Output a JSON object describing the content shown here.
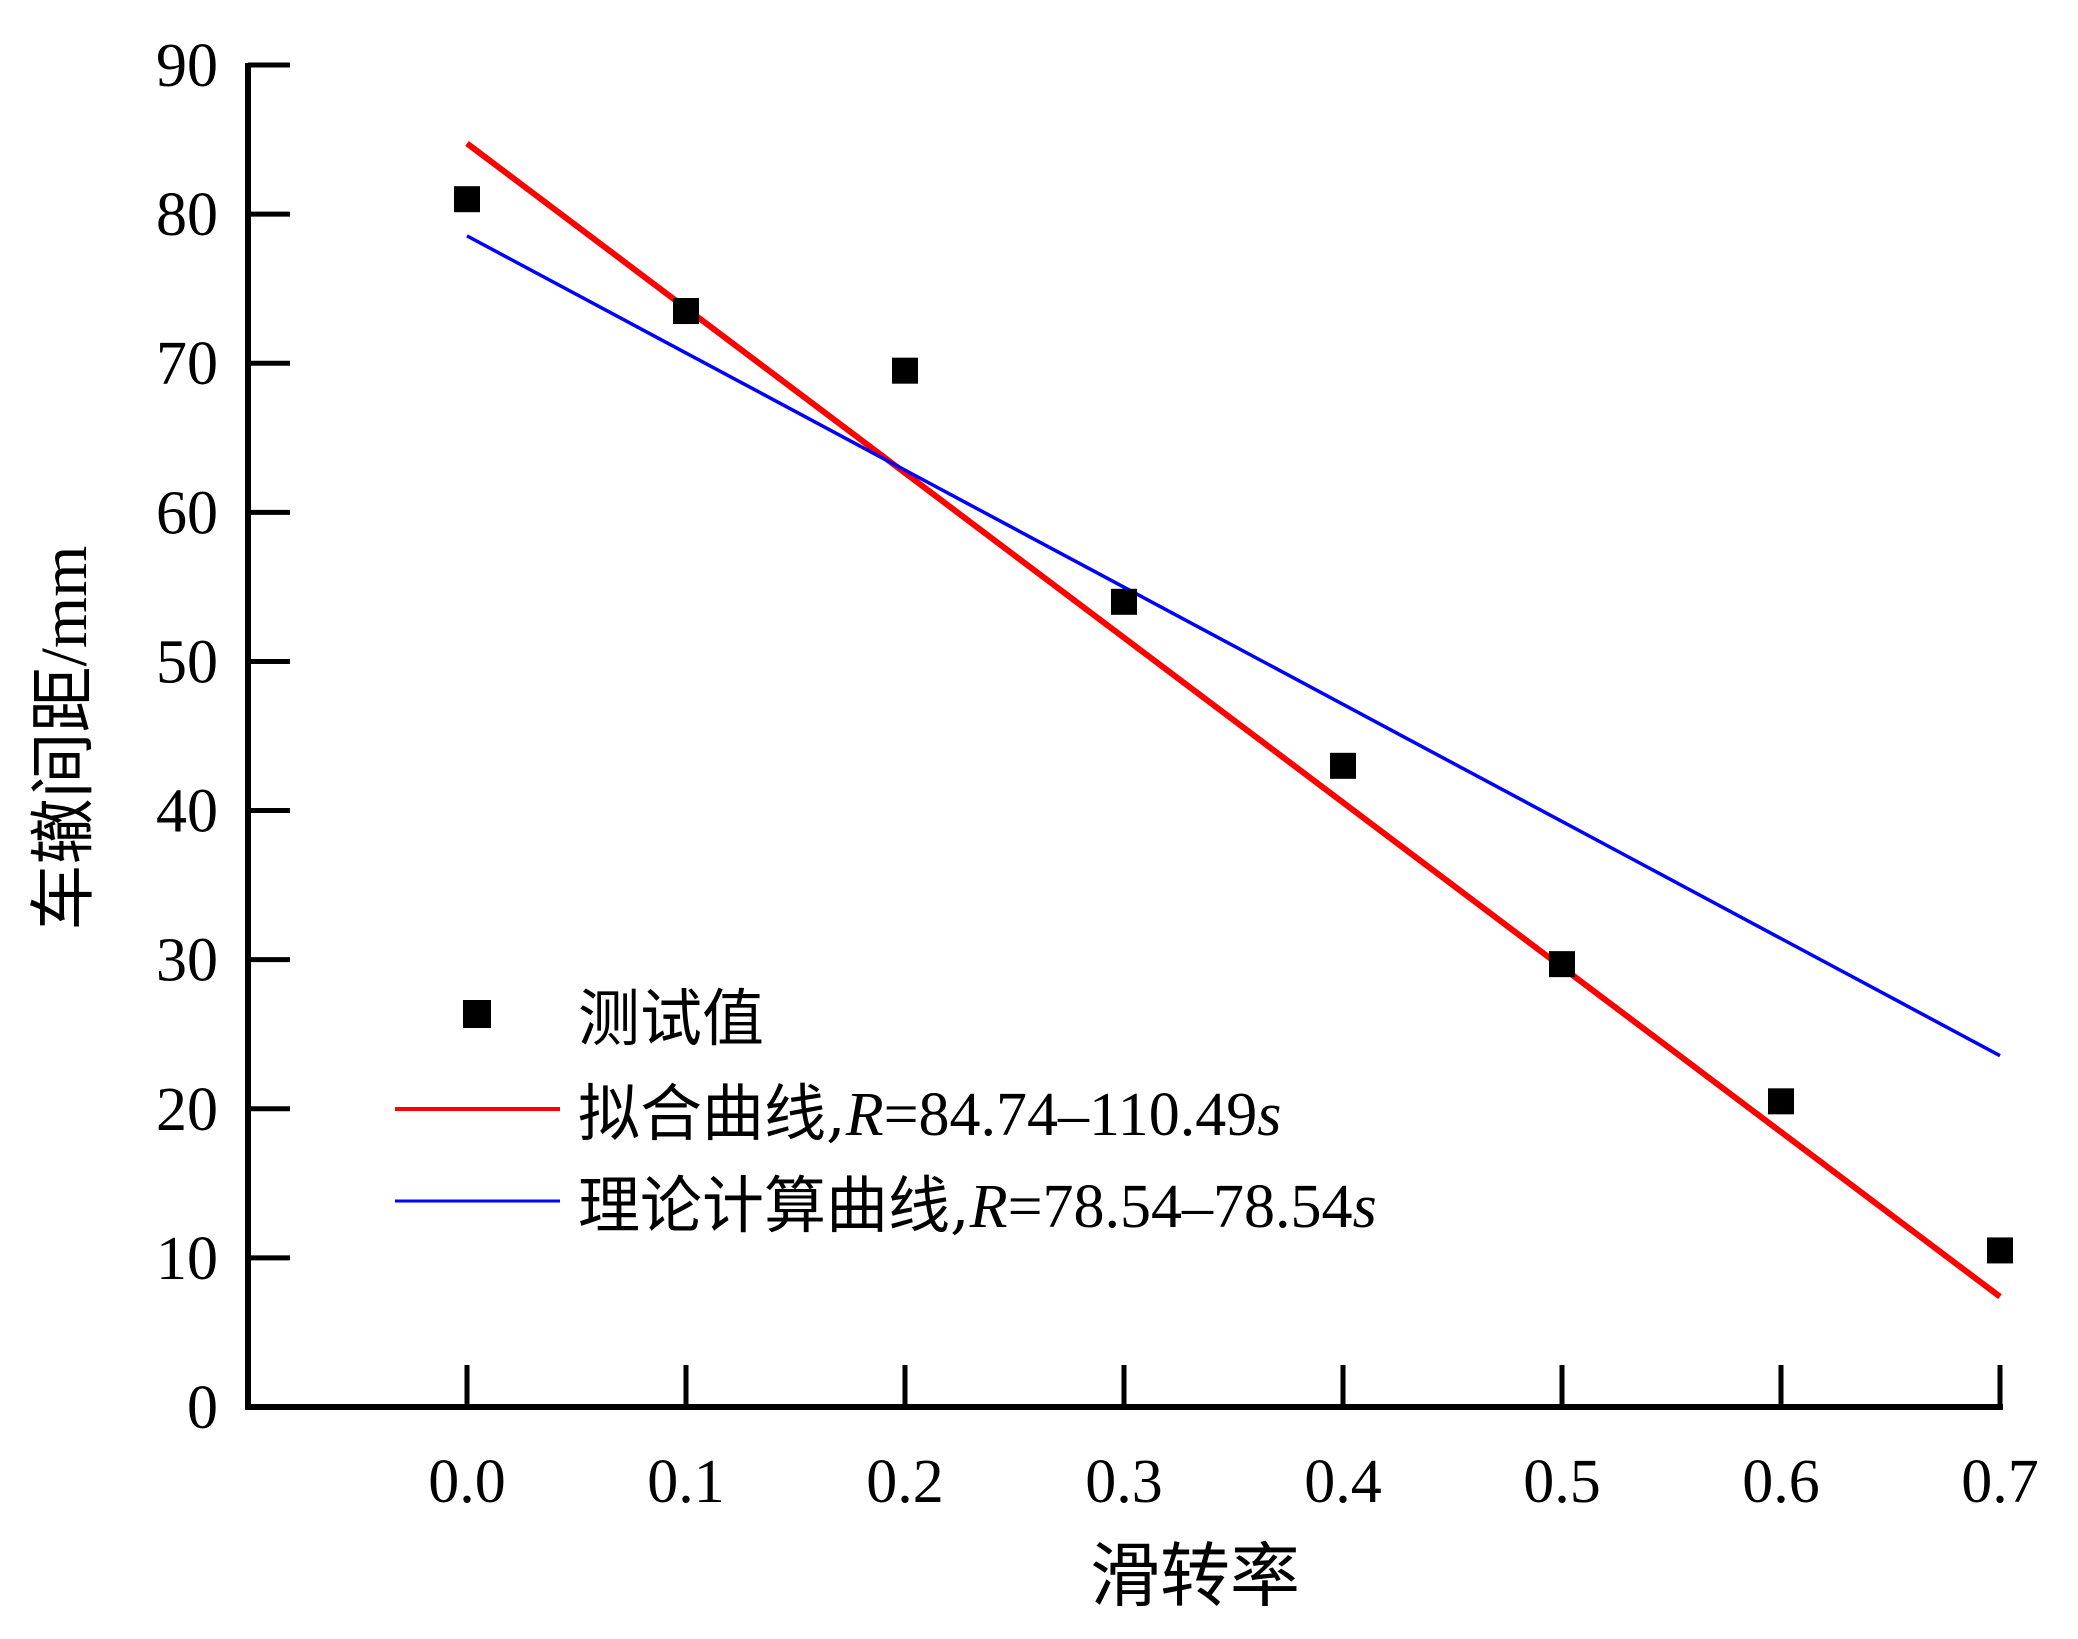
{
  "chart_data": {
    "type": "scatter",
    "xlabel": "滑转率",
    "ylabel": "车辙间距/mm",
    "xlim": [
      -0.1,
      0.7
    ],
    "ylim": [
      0,
      90
    ],
    "x_ticks": [
      0.0,
      0.1,
      0.2,
      0.3,
      0.4,
      0.5,
      0.6,
      0.7
    ],
    "x_tick_labels": [
      "0.0",
      "0.1",
      "0.2",
      "0.3",
      "0.4",
      "0.5",
      "0.6",
      "0.7"
    ],
    "y_ticks": [
      0,
      10,
      20,
      30,
      40,
      50,
      60,
      70,
      80,
      90
    ],
    "y_tick_labels": [
      "0",
      "10",
      "20",
      "30",
      "40",
      "50",
      "60",
      "70",
      "80",
      "90"
    ],
    "grid": false,
    "legend_position": "bottom-left",
    "series": [
      {
        "name": "测试值",
        "kind": "scatter",
        "marker": "square",
        "color": "#000000",
        "x": [
          0.0,
          0.1,
          0.2,
          0.3,
          0.4,
          0.5,
          0.6,
          0.7
        ],
        "y": [
          81.0,
          73.5,
          69.5,
          54.0,
          43.0,
          29.7,
          20.5,
          10.5
        ]
      },
      {
        "name": "拟合曲线,",
        "equation": {
          "lhs": "R",
          "rhs": "=84.74–110.49",
          "var": "s"
        },
        "kind": "line",
        "color": "#ff0000",
        "intercept": 84.74,
        "slope": -110.49,
        "x_range": [
          0.0,
          0.7
        ]
      },
      {
        "name": "理论计算曲线,",
        "equation": {
          "lhs": "R",
          "rhs": "=78.54–78.54",
          "var": "s"
        },
        "kind": "line",
        "color": "#0000ff",
        "intercept": 78.54,
        "slope": -78.54,
        "x_range": [
          0.0,
          0.7
        ]
      }
    ]
  }
}
